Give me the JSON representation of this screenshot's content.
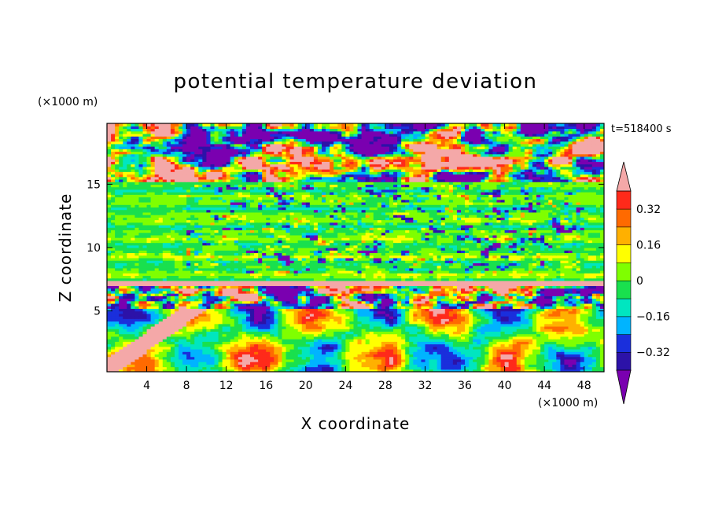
{
  "chart_data": {
    "type": "heatmap",
    "title": "potential temperature deviation",
    "xlabel": "X coordinate",
    "ylabel": "Z coordinate",
    "x_unit": "(×1000 m)",
    "y_unit": "(×1000 m)",
    "time_label": "t=518400 s",
    "xlim": [
      0,
      50
    ],
    "ylim": [
      0.2,
      19.8
    ],
    "x_ticks": [
      4,
      8,
      12,
      16,
      20,
      24,
      28,
      32,
      36,
      40,
      44,
      48
    ],
    "y_ticks": [
      5,
      10,
      15
    ],
    "colorbar": {
      "levels": [
        -0.4,
        -0.32,
        -0.24,
        -0.16,
        -0.08,
        0,
        0.08,
        0.16,
        0.24,
        0.32,
        0.4
      ],
      "tick_values": [
        -0.32,
        -0.16,
        0,
        0.16,
        0.32
      ],
      "tick_labels": [
        "−0.32",
        "−0.16",
        "0",
        "0.16",
        "0.32"
      ],
      "colors": [
        "#7a00b0",
        "#2c12a8",
        "#1a2fdc",
        "#00b4ff",
        "#00e6c0",
        "#19e04e",
        "#7fff00",
        "#ffff00",
        "#ffb000",
        "#ff6a00",
        "#ff2a1a",
        "#f4a8a8"
      ],
      "extend": "both"
    },
    "grid": false,
    "field_description_x_z": "Upper band z 15-19.8 patchy pink/purple; mid band z 7-15 mostly greens with scattered purple streaks; thin pink layer at z~7; lower band z 0-6 large oscillating warm (red/pink) and cool (blue/purple) blobs"
  }
}
